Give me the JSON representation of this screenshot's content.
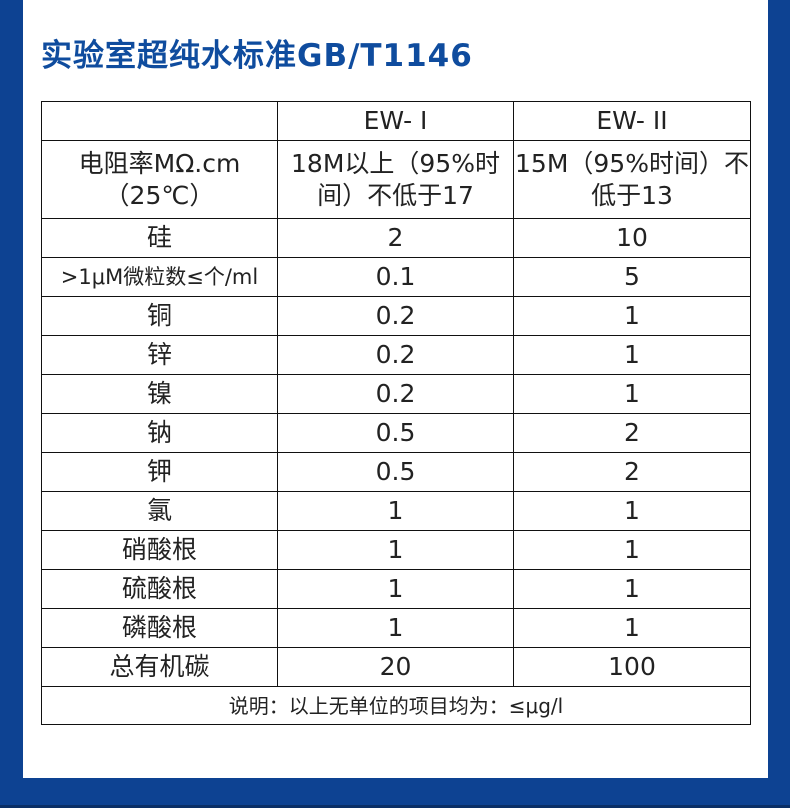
{
  "title": "实验室超纯水标准GB/T1146",
  "table": {
    "headers": [
      "",
      "EW- I",
      "EW- II"
    ],
    "rows": [
      [
        "电阻率MΩ.cm（25℃）",
        "18M以上（95%时间）不低于17",
        "15M（95%时间）不低于13"
      ],
      [
        "硅",
        "2",
        "10"
      ],
      [
        ">1μM微粒数≤个/ml",
        "0.1",
        "5"
      ],
      [
        "铜",
        "0.2",
        "1"
      ],
      [
        "锌",
        "0.2",
        "1"
      ],
      [
        "镍",
        "0.2",
        "1"
      ],
      [
        "钠",
        "0.5",
        "2"
      ],
      [
        "钾",
        "0.5",
        "2"
      ],
      [
        "氯",
        "1",
        "1"
      ],
      [
        "硝酸根",
        "1",
        "1"
      ],
      [
        "硫酸根",
        "1",
        "1"
      ],
      [
        "磷酸根",
        "1",
        "1"
      ],
      [
        "总有机碳",
        "20",
        "100"
      ]
    ],
    "note": "说明：以上无单位的项目均为：≤μg/l"
  },
  "colors": {
    "frame": "#0d4292",
    "title": "#0f4c9e"
  }
}
